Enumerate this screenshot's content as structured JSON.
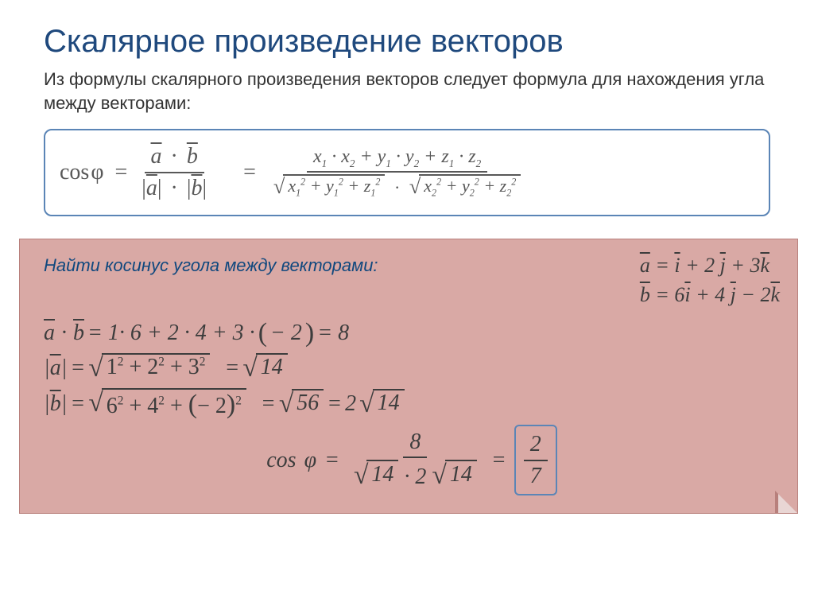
{
  "colors": {
    "title": "#1f497d",
    "border": "#5b85b6",
    "example_bg": "#d9a9a5",
    "example_border": "#b8807c",
    "text": "#3d3d3d",
    "formula_text": "#585858"
  },
  "title": "Скалярное произведение векторов",
  "subtitle": "Из формулы скалярного произведения векторов следует формула для нахождения угла между векторами:",
  "formula": {
    "cos": "cos",
    "phi": "φ",
    "eq": "=",
    "a": "a",
    "b": "b",
    "dot": "·",
    "num_expr": "x₁ · x₂ + y₁ · y₂ + z₁ · z₂",
    "den_left": "x₁² + y₁² + z₁²",
    "den_right": "x₂² + y₂² + z₂²"
  },
  "example": {
    "title": "Найти косинус угола между векторами:",
    "vec_a": "a = i + 2 j + 3k",
    "vec_b": "b = 6i + 4 j − 2k",
    "line1_lhs": "a · b",
    "line1_rhs": " = 1· 6 + 2 · 4 + 3 · (− 2) = 8",
    "line2_lhs": "a",
    "line2_rad": "1² + 2² + 3²",
    "line2_res": "14",
    "line3_lhs": "b",
    "line3_rad": "6² + 4² + (− 2)²",
    "line3_res1": "56",
    "line3_res2_coef": "2",
    "line3_res2_rad": "14",
    "final_num": "8",
    "final_den_l": "14",
    "final_den_m": " · 2",
    "final_den_r": "14",
    "boxed_num": "2",
    "boxed_den": "7"
  }
}
